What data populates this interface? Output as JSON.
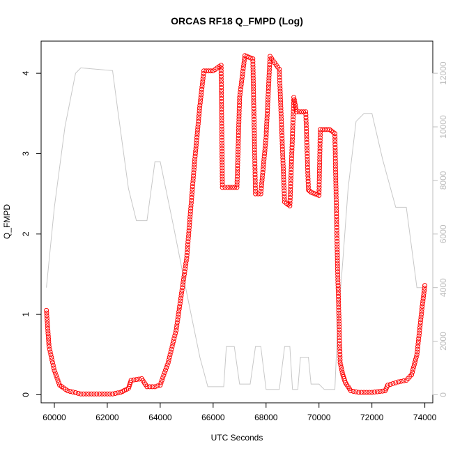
{
  "chart_data": {
    "type": "scatter",
    "title": "ORCAS RF18 Q_FMPD (Log)",
    "xlabel": "UTC Seconds",
    "ylabel": "Q_FMPD",
    "xlim": [
      59500,
      74300
    ],
    "ylim": [
      -0.1,
      4.4
    ],
    "y2lim": [
      -300,
      13200
    ],
    "x_ticks": [
      60000,
      62000,
      64000,
      66000,
      68000,
      70000,
      72000,
      74000
    ],
    "y_ticks": [
      0,
      1,
      2,
      3,
      4
    ],
    "y2_ticks": [
      0,
      2000,
      4000,
      6000,
      8000,
      10000,
      12000
    ],
    "grid": false,
    "colors": {
      "primary": "#ff0000",
      "secondary": "#c8c8c8",
      "axis": "#000000",
      "right_axis": "#bdbdbd"
    },
    "series": [
      {
        "role": "primary",
        "style": "open-circle-markers",
        "x": [
          59700,
          59800,
          60000,
          60200,
          60500,
          61000,
          61500,
          62000,
          62200,
          62500,
          62800,
          62900,
          63300,
          63500,
          63800,
          64000,
          64300,
          64600,
          65000,
          65300,
          65500,
          65650,
          66000,
          66300,
          66350,
          66550,
          66900,
          67000,
          67200,
          67500,
          67600,
          67800,
          68000,
          68150,
          68500,
          68700,
          68900,
          69050,
          69150,
          69250,
          69500,
          69600,
          69700,
          70000,
          70050,
          70400,
          70600,
          70700,
          70800,
          70900,
          71000,
          71200,
          71500,
          71800,
          72000,
          72500,
          72600,
          73000,
          73300,
          73500,
          73700,
          73800,
          73900,
          74000
        ],
        "y": [
          1.05,
          0.6,
          0.3,
          0.12,
          0.05,
          0.01,
          0.01,
          0.01,
          0.01,
          0.03,
          0.08,
          0.18,
          0.2,
          0.1,
          0.1,
          0.12,
          0.4,
          0.8,
          1.7,
          2.9,
          3.6,
          4.03,
          4.03,
          4.1,
          2.58,
          2.58,
          2.58,
          3.7,
          4.22,
          4.18,
          2.5,
          2.5,
          3.2,
          4.21,
          4.05,
          2.4,
          2.35,
          3.7,
          3.52,
          3.52,
          3.52,
          2.55,
          2.52,
          2.48,
          3.3,
          3.3,
          3.25,
          1.6,
          0.4,
          0.25,
          0.15,
          0.05,
          0.03,
          0.03,
          0.03,
          0.05,
          0.12,
          0.16,
          0.18,
          0.25,
          0.5,
          0.8,
          1.1,
          1.36
        ]
      },
      {
        "role": "secondary",
        "style": "line",
        "x": [
          59700,
          60000,
          60400,
          60800,
          61000,
          62200,
          62400,
          62800,
          63100,
          63300,
          63500,
          63800,
          64000,
          64500,
          65000,
          65500,
          65800,
          66400,
          66500,
          66800,
          67000,
          67400,
          67600,
          67800,
          68000,
          68500,
          68700,
          68900,
          69000,
          69200,
          69300,
          69600,
          69700,
          70000,
          70200,
          70600,
          70700,
          70900,
          71100,
          71400,
          71700,
          71900,
          72000,
          72400,
          72900,
          73300,
          73700,
          73900
        ],
        "y": [
          4000,
          7000,
          10000,
          12000,
          12200,
          12100,
          10600,
          7700,
          6500,
          6500,
          6500,
          8700,
          8700,
          6300,
          3800,
          1400,
          300,
          300,
          1800,
          1800,
          400,
          400,
          1800,
          1800,
          200,
          200,
          1800,
          1800,
          200,
          200,
          1400,
          1400,
          400,
          400,
          200,
          200,
          2500,
          5000,
          7700,
          10200,
          10500,
          10500,
          10500,
          8800,
          7000,
          7000,
          4000,
          4000
        ]
      }
    ]
  }
}
